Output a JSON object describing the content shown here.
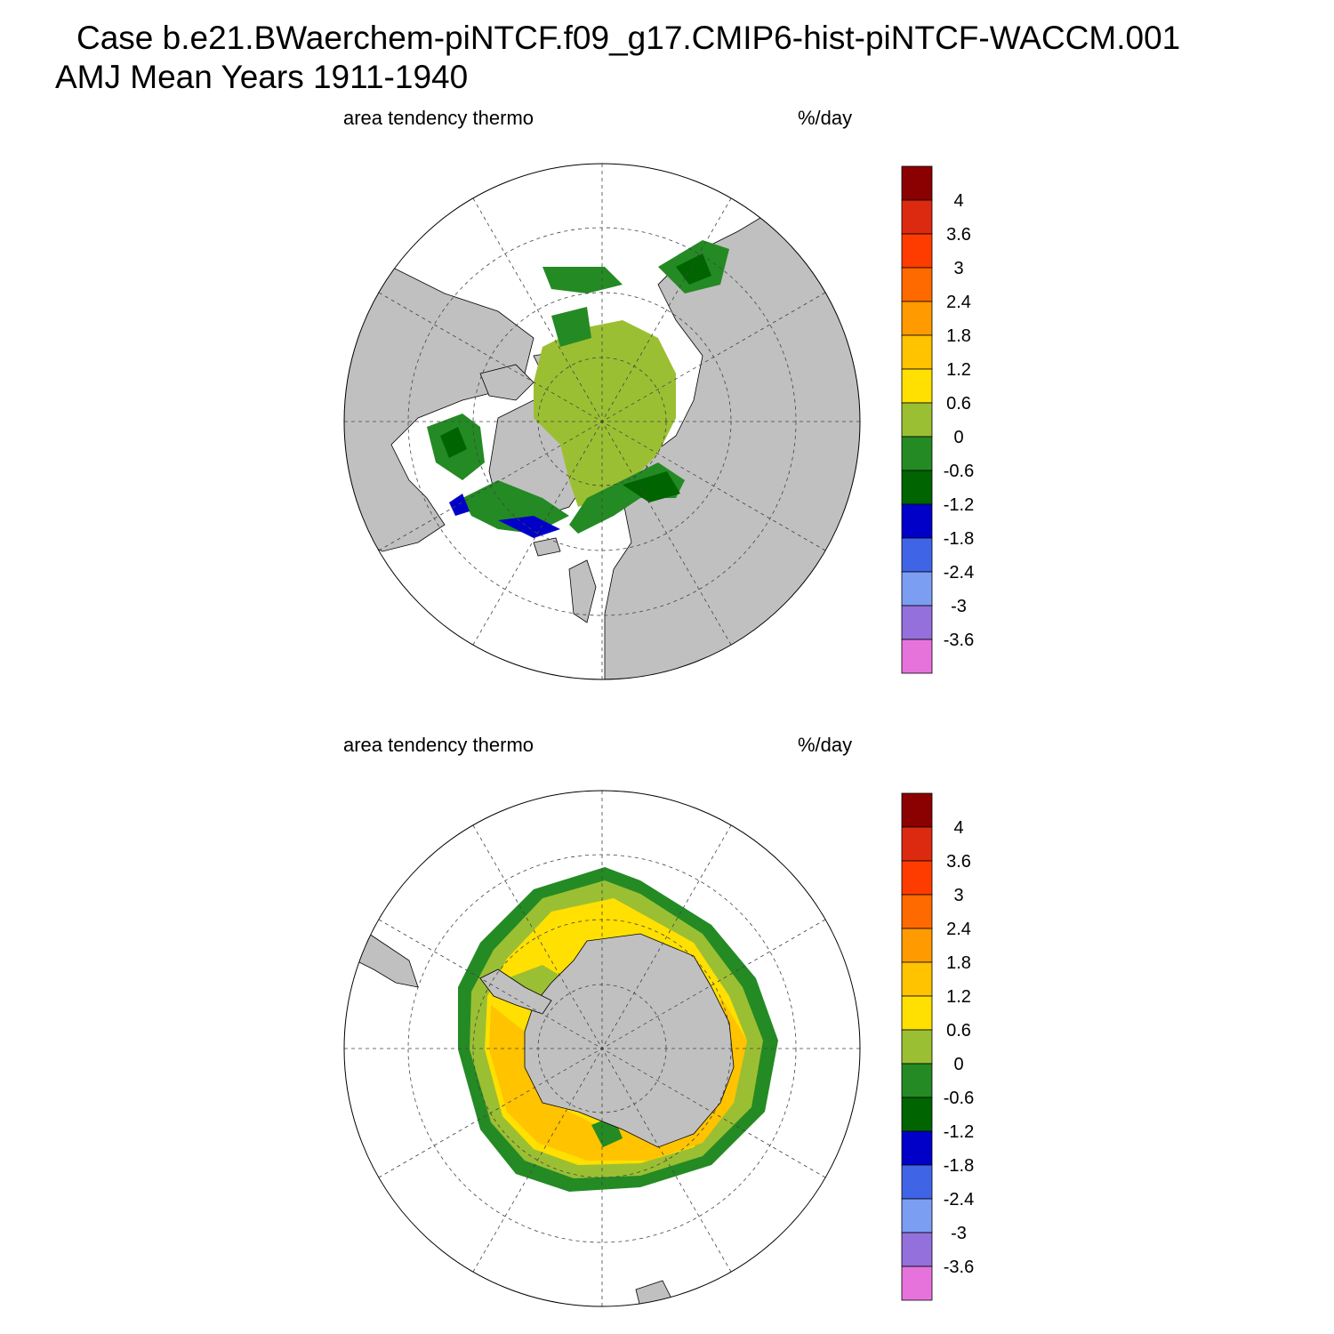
{
  "title": {
    "line1": "Case b.e21.BWaerchem-piNTCF.f09_g17.CMIP6-hist-piNTCF-WACCM.001",
    "line2": "AMJ Mean   Years 1911-1940"
  },
  "colorbar": {
    "labels": [
      "4",
      "3.6",
      "3",
      "2.4",
      "1.8",
      "1.2",
      "0.6",
      "0",
      "-0.6",
      "-1.2",
      "-1.8",
      "-2.4",
      "-3",
      "-3.6"
    ],
    "colors": [
      "#8b0000",
      "#dc2a10",
      "#ff3c00",
      "#ff6a00",
      "#ff9a00",
      "#ffc300",
      "#ffe000",
      "#9bbf33",
      "#248a24",
      "#006400",
      "#0000c8",
      "#3f65e6",
      "#7b9ef2",
      "#9370db",
      "#e673dc"
    ]
  },
  "panels": [
    {
      "id": "north",
      "variable_label": "area tendency thermo",
      "units_label": "%/day",
      "hemisphere": "arctic"
    },
    {
      "id": "south",
      "variable_label": "area tendency thermo",
      "units_label": "%/day",
      "hemisphere": "antarctic"
    }
  ],
  "map_colors": {
    "land": "#c0c0c0",
    "ocean": "#ffffff",
    "grid": "#444444"
  }
}
